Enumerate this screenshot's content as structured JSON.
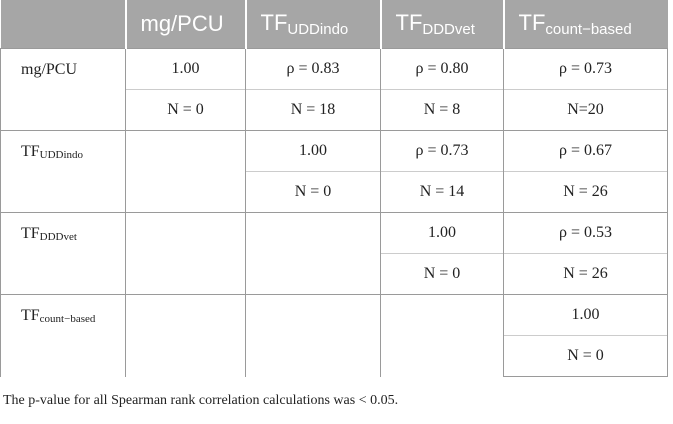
{
  "table": {
    "header": [
      {
        "text": "mg/PCU"
      },
      {
        "text": "TF",
        "sub": "UDDindo"
      },
      {
        "text": "TF",
        "sub": "DDDvet"
      },
      {
        "text": "TF",
        "sub": "count−based"
      }
    ],
    "rows": [
      {
        "label": {
          "text": "mg/PCU"
        },
        "cells": [
          [
            "1.00",
            "N = 0"
          ],
          [
            "ρ = 0.83",
            "N = 18"
          ],
          [
            "ρ = 0.80",
            "N = 8"
          ],
          [
            "ρ = 0.73",
            "N=20"
          ]
        ]
      },
      {
        "label": {
          "text": "TF",
          "sub": "UDDindo"
        },
        "cells": [
          null,
          [
            "1.00",
            "N = 0"
          ],
          [
            "ρ = 0.73",
            "N = 14"
          ],
          [
            "ρ = 0.67",
            "N = 26"
          ]
        ]
      },
      {
        "label": {
          "text": "TF",
          "sub": "DDDvet"
        },
        "cells": [
          null,
          null,
          [
            "1.00",
            "N = 0"
          ],
          [
            "ρ = 0.53",
            "N = 26"
          ]
        ]
      },
      {
        "label": {
          "text": "TF",
          "sub": "count−based"
        },
        "cells": [
          null,
          null,
          null,
          [
            "1.00",
            "N = 0"
          ]
        ]
      }
    ]
  },
  "footnote": "The p-value for all Spearman rank correlation calculations was < 0.05."
}
